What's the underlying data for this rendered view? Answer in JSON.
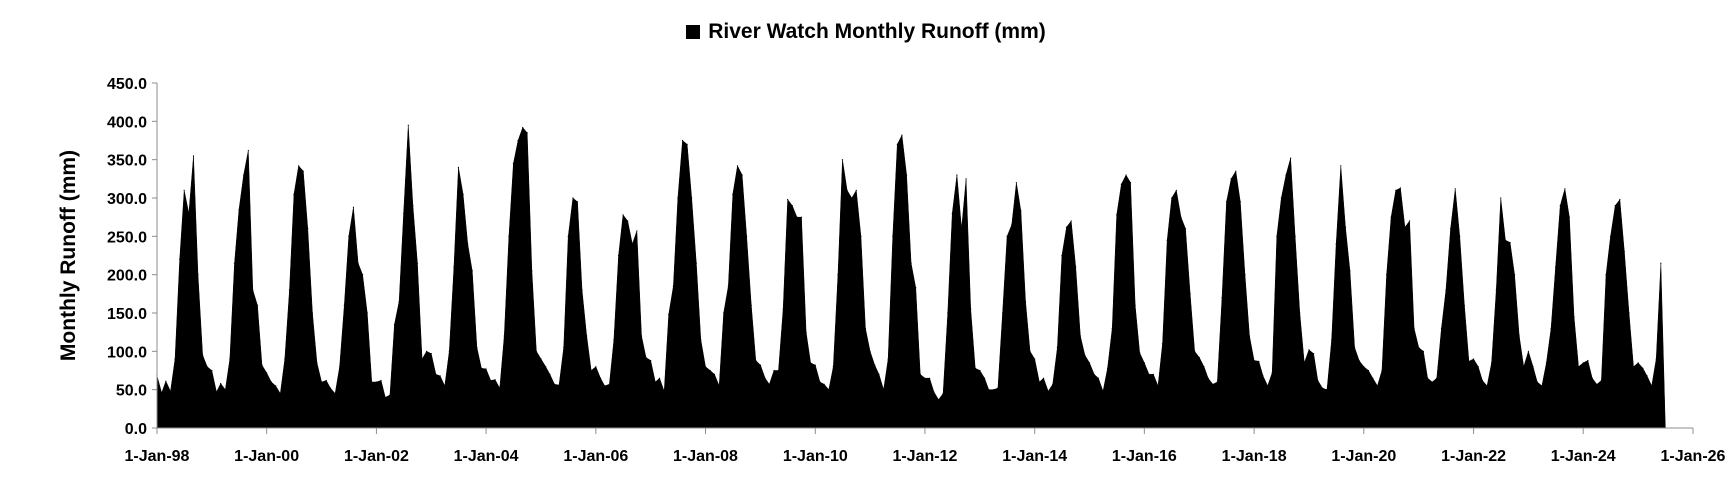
{
  "chart_data": {
    "type": "area",
    "legend": {
      "label": "River Watch Monthly Runoff (mm)",
      "position": "top"
    },
    "ylabel": "Monthly Runoff (mm)",
    "xlabel": "",
    "ylim": [
      0,
      450
    ],
    "y_ticks": [
      "0.0",
      "50.0",
      "100.0",
      "150.0",
      "200.0",
      "250.0",
      "300.0",
      "350.0",
      "400.0",
      "450.0"
    ],
    "x_range": [
      "1998-01-01",
      "2026-01-01"
    ],
    "x_ticks": [
      {
        "date": "1998-01-01",
        "label": "1-Jan-98"
      },
      {
        "date": "2000-01-01",
        "label": "1-Jan-00"
      },
      {
        "date": "2002-01-01",
        "label": "1-Jan-02"
      },
      {
        "date": "2004-01-01",
        "label": "1-Jan-04"
      },
      {
        "date": "2006-01-01",
        "label": "1-Jan-06"
      },
      {
        "date": "2008-01-01",
        "label": "1-Jan-08"
      },
      {
        "date": "2010-01-01",
        "label": "1-Jan-10"
      },
      {
        "date": "2012-01-01",
        "label": "1-Jan-12"
      },
      {
        "date": "2014-01-01",
        "label": "1-Jan-14"
      },
      {
        "date": "2016-01-01",
        "label": "1-Jan-16"
      },
      {
        "date": "2018-01-01",
        "label": "1-Jan-18"
      },
      {
        "date": "2020-01-01",
        "label": "1-Jan-20"
      },
      {
        "date": "2022-01-01",
        "label": "1-Jan-22"
      },
      {
        "date": "2024-01-01",
        "label": "1-Jan-24"
      },
      {
        "date": "2026-01-01",
        "label": "1-Jan-26"
      }
    ],
    "grid": false,
    "color": "#000000",
    "series": [
      {
        "name": "River Watch Monthly Runoff (mm)",
        "start": "1998-01",
        "values": [
          68,
          46,
          61,
          48,
          90,
          220,
          310,
          280,
          355,
          200,
          95,
          80,
          75,
          47,
          58,
          50,
          90,
          215,
          285,
          330,
          362,
          180,
          160,
          82,
          72,
          60,
          55,
          45,
          90,
          180,
          305,
          342,
          335,
          260,
          150,
          85,
          60,
          62,
          52,
          45,
          80,
          160,
          250,
          288,
          215,
          200,
          150,
          60,
          60,
          62,
          40,
          43,
          135,
          165,
          280,
          395,
          290,
          215,
          90,
          100,
          97,
          70,
          68,
          55,
          100,
          210,
          340,
          305,
          240,
          205,
          105,
          78,
          77,
          62,
          63,
          52,
          120,
          250,
          345,
          375,
          392,
          385,
          205,
          100,
          90,
          80,
          70,
          57,
          56,
          105,
          250,
          300,
          295,
          180,
          120,
          75,
          80,
          65,
          55,
          57,
          115,
          225,
          278,
          270,
          240,
          257,
          120,
          92,
          88,
          60,
          65,
          48,
          148,
          185,
          300,
          375,
          370,
          300,
          215,
          115,
          80,
          75,
          70,
          55,
          150,
          185,
          305,
          342,
          330,
          250,
          160,
          88,
          82,
          65,
          57,
          75,
          75,
          155,
          298,
          290,
          275,
          275,
          125,
          85,
          82,
          60,
          57,
          50,
          80,
          200,
          350,
          310,
          300,
          310,
          250,
          130,
          100,
          82,
          70,
          50,
          90,
          250,
          370,
          382,
          330,
          215,
          183,
          70,
          65,
          65,
          47,
          37,
          45,
          150,
          280,
          330,
          260,
          325,
          155,
          78,
          75,
          65,
          50,
          50,
          52,
          150,
          250,
          265,
          320,
          283,
          165,
          100,
          90,
          60,
          65,
          48,
          57,
          105,
          225,
          262,
          270,
          210,
          120,
          95,
          85,
          70,
          65,
          48,
          78,
          130,
          278,
          318,
          330,
          320,
          160,
          98,
          85,
          70,
          70,
          55,
          110,
          245,
          300,
          310,
          275,
          260,
          175,
          100,
          92,
          80,
          65,
          57,
          60,
          170,
          295,
          325,
          335,
          295,
          200,
          120,
          88,
          87,
          68,
          55,
          72,
          250,
          300,
          330,
          352,
          250,
          150,
          85,
          102,
          97,
          62,
          52,
          50,
          115,
          240,
          342,
          262,
          205,
          105,
          88,
          80,
          75,
          65,
          55,
          75,
          200,
          275,
          310,
          313,
          262,
          270,
          130,
          105,
          100,
          65,
          60,
          65,
          130,
          180,
          260,
          312,
          250,
          160,
          87,
          90,
          80,
          62,
          55,
          85,
          180,
          300,
          245,
          242,
          200,
          120,
          80,
          100,
          80,
          60,
          55,
          85,
          130,
          210,
          290,
          312,
          275,
          145,
          80,
          85,
          88,
          65,
          57,
          62,
          200,
          250,
          290,
          298,
          230,
          150,
          80,
          85,
          78,
          68,
          55,
          90,
          215,
          0
        ]
      }
    ]
  }
}
